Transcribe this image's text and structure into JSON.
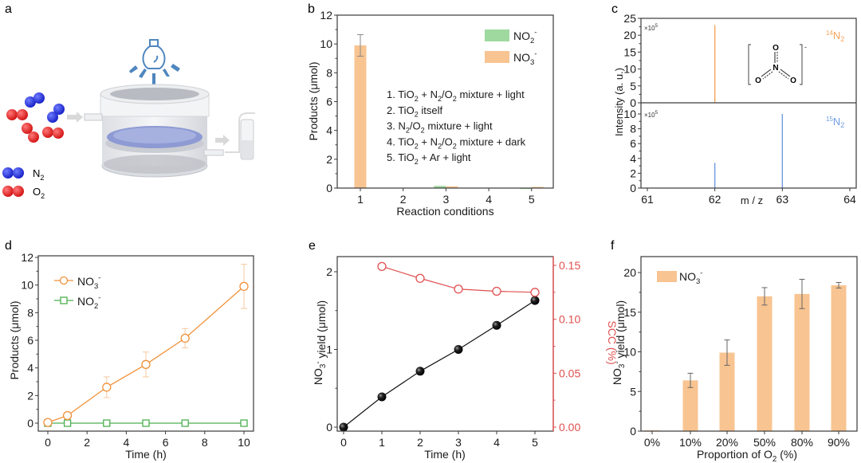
{
  "panels": {
    "a": {
      "letter": "a",
      "legend": [
        {
          "label": "N",
          "sub": "2",
          "color": "#2233dd"
        },
        {
          "label": "O",
          "sub": "2",
          "color": "#e02525"
        }
      ]
    },
    "b": {
      "letter": "b"
    },
    "c": {
      "letter": "c"
    },
    "d": {
      "letter": "d"
    },
    "e": {
      "letter": "e"
    },
    "f": {
      "letter": "f"
    }
  },
  "colors": {
    "nitrate": "#f8c491",
    "nitrite": "#9fd9a0",
    "line_orange": "#f0913a",
    "line_green": "#4caf50",
    "red_axis": "#e05050",
    "blue_peak": "#6f9be0",
    "orange_peak": "#f5a55a"
  },
  "chart_data": [
    {
      "id": "b",
      "type": "bar",
      "title": "",
      "xlabel": "Reaction conditions",
      "ylabel": "Products (μmol)",
      "ylim": [
        0,
        12
      ],
      "yticks": [
        0,
        2,
        4,
        6,
        8,
        10,
        12
      ],
      "categories": [
        "1",
        "2",
        "3",
        "4",
        "5"
      ],
      "series": [
        {
          "name": "NO2⁻",
          "values": [
            0,
            0,
            0.15,
            0,
            0.02
          ]
        },
        {
          "name": "NO3⁻",
          "values": [
            9.9,
            0,
            0.12,
            0,
            0.08
          ],
          "errors": [
            0.75,
            0,
            0,
            0,
            0
          ]
        }
      ],
      "legend": [
        {
          "name": "NO",
          "sub": "2",
          "sup": "-"
        },
        {
          "name": "NO",
          "sub": "3",
          "sup": "-"
        }
      ],
      "legend_position": "top-right",
      "annotations": [
        "1. TiO2 + N2/O2 mixture + light",
        "2. TiO2 itself",
        "3. N2/O2 mixture + light",
        "4. TiO2 + N2/O2 mixture + dark",
        "5. TiO2 + Ar + light"
      ]
    },
    {
      "id": "c",
      "type": "bar",
      "subtype": "mass-spectrum",
      "xlabel": "m / z",
      "ylabel": "Intensity (a. u.)",
      "xlim": [
        61,
        64
      ],
      "xticks": [
        61,
        62,
        63,
        64
      ],
      "subplots": [
        {
          "name": "14N2",
          "label_pre": "14",
          "label": "N",
          "sub": "2",
          "multiplier": "×10",
          "multiplier_exp": "5",
          "ylim": [
            0,
            25
          ],
          "yticks": [
            0,
            5,
            10,
            15,
            20,
            25
          ],
          "peaks": [
            {
              "x": 62,
              "y": 23
            }
          ]
        },
        {
          "name": "15N2",
          "label_pre": "15",
          "label": "N",
          "sub": "2",
          "multiplier": "×10",
          "multiplier_exp": "5",
          "ylim": [
            0,
            10
          ],
          "yticks": [
            0,
            2,
            4,
            6,
            8,
            10
          ],
          "peaks": [
            {
              "x": 62,
              "y": 3.4
            },
            {
              "x": 63,
              "y": 10
            }
          ]
        }
      ],
      "inset": "nitrate anion structure [NO3]⁻"
    },
    {
      "id": "d",
      "type": "line",
      "xlabel": "Time (h)",
      "ylabel": "Products (μmol)",
      "xlim": [
        -0.5,
        10.5
      ],
      "ylim": [
        -0.5,
        12
      ],
      "xticks": [
        0,
        2,
        4,
        6,
        8,
        10
      ],
      "yticks": [
        0,
        2,
        4,
        6,
        8,
        10,
        12
      ],
      "x": [
        0,
        1,
        3,
        5,
        7,
        10
      ],
      "series": [
        {
          "name": "NO3⁻",
          "marker": "circle",
          "values": [
            0.05,
            0.55,
            2.6,
            4.25,
            6.15,
            9.9
          ],
          "errors": [
            0,
            0,
            0.75,
            0.9,
            0.7,
            1.6
          ]
        },
        {
          "name": "NO2⁻",
          "marker": "square",
          "values": [
            0,
            0,
            0,
            0,
            0,
            0
          ]
        }
      ],
      "legend": [
        {
          "name": "NO",
          "sub": "3",
          "sup": "-"
        },
        {
          "name": "NO",
          "sub": "2",
          "sup": "-"
        }
      ],
      "legend_position": "top-left"
    },
    {
      "id": "e",
      "type": "line",
      "xlabel": "Time (h)",
      "ylabel": "NO3⁻ yield (μmol)",
      "ylabel_right": "SCC (%)",
      "xlim": [
        -0.15,
        5.5
      ],
      "ylim": [
        -0.04,
        2.2
      ],
      "ylim_right": [
        -0.003,
        0.161
      ],
      "xticks": [
        0,
        1,
        2,
        3,
        4,
        5
      ],
      "yticks": [
        0,
        1,
        2
      ],
      "yticks_right": [
        "0.00",
        "0.05",
        "0.10",
        "0.15"
      ],
      "x": [
        0,
        1,
        2,
        3,
        4,
        5
      ],
      "series": [
        {
          "name": "NO3⁻ yield",
          "axis": "left",
          "marker": "filled-sphere",
          "values": [
            0,
            0.39,
            0.72,
            1.0,
            1.31,
            1.63
          ]
        },
        {
          "name": "SCC",
          "axis": "right",
          "marker": "open-circle",
          "x": [
            1,
            2,
            3,
            4,
            5
          ],
          "values": [
            0.149,
            0.138,
            0.128,
            0.126,
            0.125
          ]
        }
      ]
    },
    {
      "id": "f",
      "type": "bar",
      "xlabel": "Proportion of O2 (%)",
      "ylabel": "NO3⁻ yield (μmol)",
      "ylim": [
        0,
        22
      ],
      "yticks": [
        0,
        5,
        10,
        15,
        20
      ],
      "categories": [
        "0%",
        "10%",
        "20%",
        "50%",
        "80%",
        "90%"
      ],
      "series": [
        {
          "name": "NO3⁻",
          "values": [
            0.1,
            6.4,
            9.9,
            17.0,
            17.3,
            18.4
          ],
          "errors": [
            0,
            0.9,
            1.6,
            1.1,
            1.85,
            0.35
          ]
        }
      ],
      "legend": [
        {
          "name": "NO",
          "sub": "3",
          "sup": "-"
        }
      ],
      "legend_position": "top-left"
    }
  ]
}
